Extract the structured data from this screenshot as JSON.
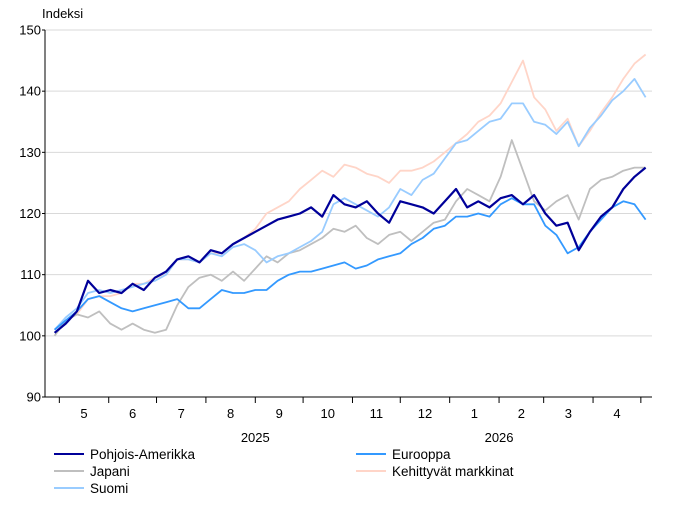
{
  "chart_data": {
    "type": "line",
    "ylabel": "Indeksi",
    "ylim": [
      90,
      150
    ],
    "yticks": [
      90,
      100,
      110,
      120,
      130,
      140,
      150
    ],
    "grid": true,
    "x_month_labels": [
      "5",
      "6",
      "7",
      "8",
      "9",
      "10",
      "11",
      "12",
      "1",
      "2",
      "3",
      "4"
    ],
    "x_year_labels": [
      "2025",
      "2026"
    ],
    "x": [
      "2025-04-28",
      "2025-05-05",
      "2025-05-12",
      "2025-05-19",
      "2025-05-26",
      "2025-06-02",
      "2025-06-09",
      "2025-06-16",
      "2025-06-23",
      "2025-06-30",
      "2025-07-07",
      "2025-07-14",
      "2025-07-21",
      "2025-07-28",
      "2025-08-04",
      "2025-08-11",
      "2025-08-18",
      "2025-08-25",
      "2025-09-01",
      "2025-09-08",
      "2025-09-15",
      "2025-09-22",
      "2025-09-29",
      "2025-10-06",
      "2025-10-13",
      "2025-10-20",
      "2025-10-27",
      "2025-11-03",
      "2025-11-10",
      "2025-11-17",
      "2025-11-24",
      "2025-12-01",
      "2025-12-08",
      "2025-12-15",
      "2025-12-22",
      "2025-12-29",
      "2026-01-05",
      "2026-01-12",
      "2026-01-19",
      "2026-01-26",
      "2026-02-02",
      "2026-02-09",
      "2026-02-16",
      "2026-02-23",
      "2026-03-02",
      "2026-03-09",
      "2026-03-16",
      "2026-03-23",
      "2026-03-30",
      "2026-04-06",
      "2026-04-13",
      "2026-04-20",
      "2026-04-27",
      "2026-05-04"
    ],
    "series": [
      {
        "name": "Pohjois-Amerikka",
        "color": "#000099",
        "values": [
          100.5,
          102,
          104,
          109,
          107,
          107.5,
          107,
          108.5,
          107.5,
          109.5,
          110.5,
          112.5,
          113,
          112,
          114,
          113.5,
          115,
          116,
          117,
          118,
          119,
          119.5,
          120,
          121,
          119.5,
          123,
          121.5,
          121,
          122,
          120,
          118.5,
          122,
          121.5,
          121,
          120,
          122,
          124,
          121,
          122,
          121,
          122.5,
          123,
          121.5,
          123,
          120,
          118,
          118.5,
          114,
          117,
          119.5,
          121,
          124,
          126,
          127.5
        ]
      },
      {
        "name": "Japani",
        "color": "#bfbfbf",
        "values": [
          100,
          102.5,
          103.5,
          103,
          104,
          102,
          101,
          102,
          101,
          100.5,
          101,
          105,
          108,
          109.5,
          110,
          109,
          110.5,
          109,
          111,
          113,
          112,
          113.5,
          114,
          115,
          116,
          117.5,
          117,
          118,
          116,
          115,
          116.5,
          117,
          115.5,
          117,
          118.5,
          119,
          122,
          124,
          123,
          122,
          126,
          132,
          127,
          122,
          120.5,
          122,
          123,
          119,
          124,
          125.5,
          126,
          127,
          127.5,
          127.5
        ]
      },
      {
        "name": "Suomi",
        "color": "#99ccff",
        "values": [
          101,
          103,
          104.5,
          107,
          107.5,
          107,
          107.5,
          108,
          108.5,
          109,
          110,
          112.5,
          112.5,
          112,
          113.5,
          113,
          114.5,
          115,
          114,
          112,
          113,
          113.5,
          114.5,
          115.5,
          117,
          121.5,
          122.5,
          121.5,
          120.5,
          119.5,
          121,
          124,
          123,
          125.5,
          126.5,
          129,
          131.5,
          132,
          133.5,
          135,
          135.5,
          138,
          138,
          135,
          134.5,
          133,
          135,
          131,
          134,
          136,
          138.5,
          140,
          142,
          139
        ]
      },
      {
        "name": "Eurooppa",
        "color": "#3399ff",
        "values": [
          101,
          102.5,
          104,
          106,
          106.5,
          105.5,
          104.5,
          104,
          104.5,
          105,
          105.5,
          106,
          104.5,
          104.5,
          106,
          107.5,
          107,
          107,
          107.5,
          107.5,
          109,
          110,
          110.5,
          110.5,
          111,
          111.5,
          112,
          111,
          111.5,
          112.5,
          113,
          113.5,
          115,
          116,
          117.5,
          118,
          119.5,
          119.5,
          120,
          119.5,
          121.5,
          122.5,
          121.5,
          121.5,
          118,
          116.5,
          113.5,
          114.5,
          117,
          119,
          121,
          122,
          121.5,
          119
        ]
      },
      {
        "name": "Kehittyvät markkinat",
        "color": "#ffd5c8",
        "values": [
          101,
          102.5,
          103.5,
          106,
          106.5,
          106.5,
          107,
          108.5,
          108.5,
          109.5,
          110,
          112.5,
          112.5,
          112,
          113.5,
          113.5,
          115,
          116,
          117.5,
          120,
          121,
          122,
          124,
          125.5,
          127,
          126,
          128,
          127.5,
          126.5,
          126,
          125,
          127,
          127,
          127.5,
          128.5,
          130,
          131.5,
          133,
          135,
          136,
          138,
          141.5,
          145,
          139,
          137,
          133.5,
          135.5,
          131,
          133.5,
          136.5,
          139,
          142,
          144.5,
          146
        ]
      }
    ]
  }
}
